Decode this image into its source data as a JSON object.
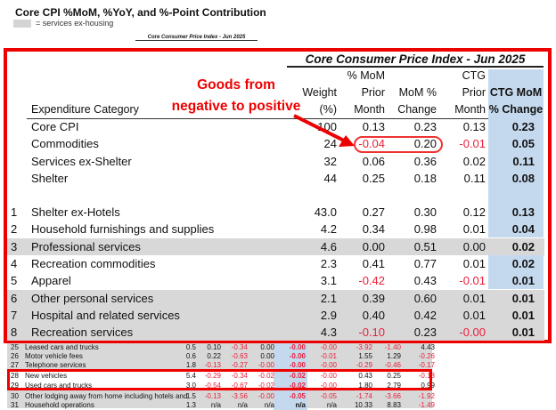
{
  "title": "Core CPI %MoM, %YoY, and %-Point Contribution",
  "legend": {
    "text": "= services ex-housing",
    "swatch_color": "#d4d4d4"
  },
  "small_title": "Core Consumer Price Index - Jun 2025",
  "main": {
    "title": "Core Consumer Price Index - Jun 2025",
    "annotation": [
      "Goods from",
      "negative to positive"
    ],
    "headers": {
      "category": "Expenditure Category",
      "weight": [
        "Weight",
        "(%)"
      ],
      "mom_prior": [
        "% MoM",
        "Prior",
        "Month"
      ],
      "mom": [
        "MoM %",
        "Change"
      ],
      "ctg_prior": [
        "CTG",
        "Prior",
        "Month"
      ],
      "ctg": [
        "CTG MoM",
        "% Change"
      ]
    },
    "summary_rows": [
      {
        "name": "Core CPI",
        "weight": "100",
        "mom_prior": "0.13",
        "mom": "0.23",
        "ctg_prior": "0.13",
        "ctg": "0.23"
      },
      {
        "name": "Commodities",
        "weight": "24",
        "mom_prior": "-0.04",
        "mom": "0.20",
        "ctg_prior": "-0.01",
        "ctg": "0.05"
      },
      {
        "name": "Services ex-Shelter",
        "weight": "32",
        "mom_prior": "0.06",
        "mom": "0.36",
        "ctg_prior": "0.02",
        "ctg": "0.11"
      },
      {
        "name": "Shelter",
        "weight": "44",
        "mom_prior": "0.25",
        "mom": "0.18",
        "ctg_prior": "0.11",
        "ctg": "0.08"
      }
    ],
    "rows": [
      {
        "num": "1",
        "name": "Shelter ex-Hotels",
        "weight": "43.0",
        "mom_prior": "0.27",
        "mom": "0.30",
        "ctg_prior": "0.12",
        "ctg": "0.13",
        "services": false
      },
      {
        "num": "2",
        "name": "Household furnishings and supplies",
        "weight": "4.2",
        "mom_prior": "0.34",
        "mom": "0.98",
        "ctg_prior": "0.01",
        "ctg": "0.04",
        "services": false
      },
      {
        "num": "3",
        "name": "Professional services",
        "weight": "4.6",
        "mom_prior": "0.00",
        "mom": "0.51",
        "ctg_prior": "0.00",
        "ctg": "0.02",
        "services": true
      },
      {
        "num": "4",
        "name": "Recreation commodities",
        "weight": "2.3",
        "mom_prior": "0.41",
        "mom": "0.77",
        "ctg_prior": "0.01",
        "ctg": "0.02",
        "services": false
      },
      {
        "num": "5",
        "name": "Apparel",
        "weight": "3.1",
        "mom_prior": "-0.42",
        "mom": "0.43",
        "ctg_prior": "-0.01",
        "ctg": "0.01",
        "services": false
      },
      {
        "num": "6",
        "name": "Other personal services",
        "weight": "2.1",
        "mom_prior": "0.39",
        "mom": "0.60",
        "ctg_prior": "0.01",
        "ctg": "0.01",
        "services": true
      },
      {
        "num": "7",
        "name": "Hospital and related services",
        "weight": "2.9",
        "mom_prior": "0.40",
        "mom": "0.42",
        "ctg_prior": "0.01",
        "ctg": "0.01",
        "services": true
      },
      {
        "num": "8",
        "name": "Recreation services",
        "weight": "4.3",
        "mom_prior": "-0.10",
        "mom": "0.23",
        "ctg_prior": "-0.00",
        "ctg": "0.01",
        "services": true
      }
    ]
  },
  "bottom_rows": [
    {
      "num": "25",
      "name": "Leased cars and trucks",
      "v": [
        "0.5",
        "0.10",
        "-0.34",
        "0.00",
        "-0.00",
        "-0.00",
        "-3.92",
        "-1.40",
        "4.43"
      ]
    },
    {
      "num": "26",
      "name": "Motor vehicle fees",
      "v": [
        "0.6",
        "0.22",
        "-0.63",
        "0.00",
        "-0.00",
        "-0.01",
        "1.55",
        "1.29",
        "-0.26"
      ]
    },
    {
      "num": "27",
      "name": "Telephone services",
      "v": [
        "1.8",
        "-0.13",
        "-0.27",
        "-0.00",
        "-0.00",
        "-0.00",
        "-0.29",
        "-0.46",
        "-0.17"
      ]
    },
    {
      "num": "28",
      "name": "New vehicles",
      "v": [
        "5.4",
        "-0.29",
        "-0.34",
        "-0.02",
        "-0.02",
        "-0.00",
        "0.43",
        "0.25",
        "-0.18"
      ]
    },
    {
      "num": "29",
      "name": "Used cars and trucks",
      "v": [
        "3.0",
        "-0.54",
        "-0.67",
        "-0.02",
        "-0.02",
        "-0.00",
        "1.80",
        "2.79",
        "0.99"
      ]
    },
    {
      "num": "30",
      "name": "Other lodging away from home including hotels and",
      "v": [
        "1.5",
        "-0.13",
        "-3.56",
        "-0.00",
        "-0.05",
        "-0.05",
        "-1.74",
        "-3.66",
        "-1.92"
      ]
    },
    {
      "num": "31",
      "name": "Household operations",
      "v": [
        "1.3",
        "n/a",
        "n/a",
        "n/a",
        "n/a",
        "n/a",
        "10.33",
        "8.83",
        "-1.49"
      ]
    }
  ],
  "colors": {
    "highlight_red": "#e00000",
    "negative": "#e8203a",
    "ctg_blue": "#c5d9ee",
    "services_gray": "#d8d8d8"
  }
}
